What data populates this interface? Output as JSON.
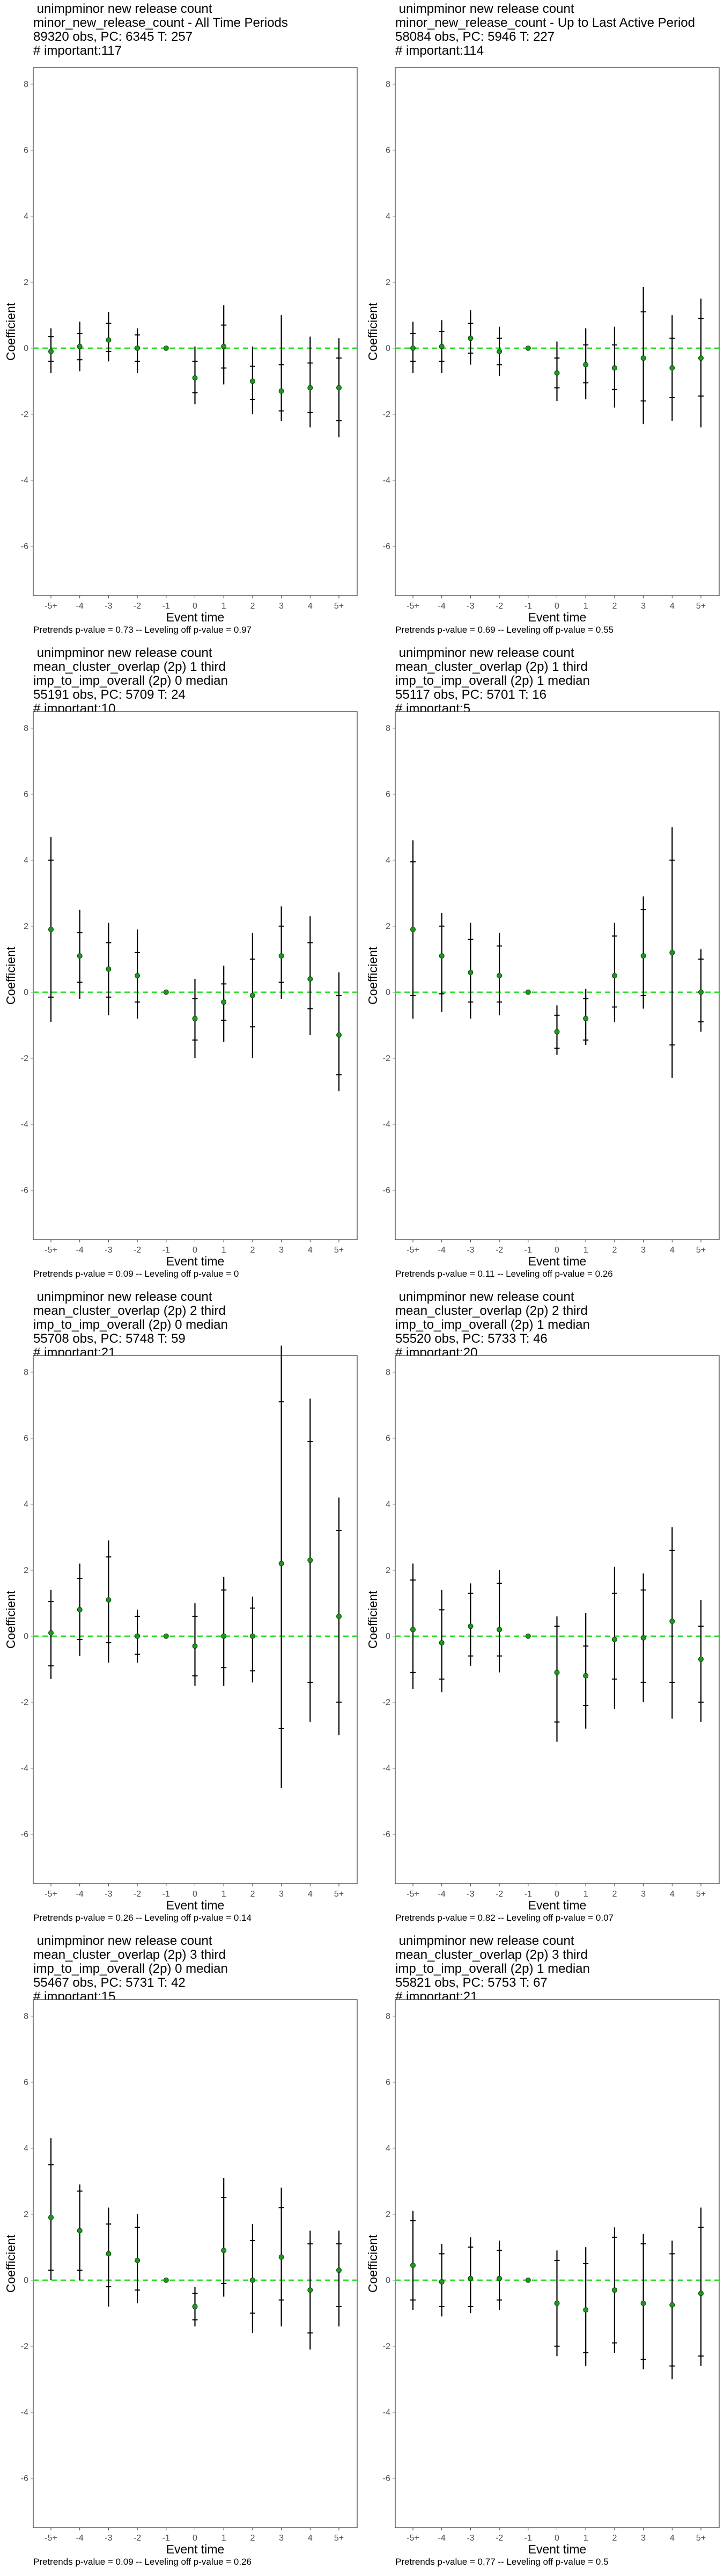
{
  "shared": {
    "x_label": "Event time",
    "y_label": "Coefficient",
    "x_ticks": [
      "-5+",
      "-4",
      "-3",
      "-2",
      "-1",
      "0",
      "1",
      "2",
      "3",
      "4",
      "5+"
    ],
    "y_ticks": [
      8,
      6,
      4,
      2,
      0,
      -2,
      -4,
      -6
    ],
    "point_color": "#1a9a1a",
    "zero_line_color": "#33dd33"
  },
  "chart_data": [
    {
      "type": "scatter",
      "title_lines": [
        " unimpminor new release count",
        "minor_new_release_count - All Time Periods",
        "89320 obs, PC: 6345 T: 257",
        "# important:117"
      ],
      "caption": "Pretrends p-value = 0.73 -- Leveling off p-value = 0.97",
      "xlabel": "Event time",
      "ylabel": "Coefficient",
      "ylim": [
        -7.5,
        8.5
      ],
      "categories": [
        "-5+",
        "-4",
        "-3",
        "-2",
        "-1",
        "0",
        "1",
        "2",
        "3",
        "4",
        "5+"
      ],
      "series": [
        {
          "values": [
            -0.1,
            0.05,
            0.25,
            0.0,
            0.0,
            -0.9,
            0.05,
            -1.0,
            -1.3,
            -1.2,
            -1.2
          ],
          "ci_outer_low": [
            -0.75,
            -0.7,
            -0.4,
            -0.75,
            0.0,
            -1.7,
            -1.1,
            -2.0,
            -2.2,
            -2.4,
            -2.7
          ],
          "ci_outer_high": [
            0.6,
            0.8,
            1.1,
            0.6,
            0.0,
            0.05,
            1.3,
            0.05,
            1.0,
            0.35,
            0.3
          ],
          "ci_inner_low": [
            -0.4,
            -0.35,
            -0.1,
            -0.4,
            0.0,
            -1.35,
            -0.6,
            -1.55,
            -1.9,
            -1.95,
            -2.2
          ],
          "ci_inner_high": [
            0.35,
            0.45,
            0.75,
            0.4,
            0.0,
            -0.4,
            0.7,
            -0.55,
            -0.5,
            -0.45,
            -0.3
          ]
        }
      ]
    },
    {
      "type": "scatter",
      "title_lines": [
        " unimpminor new release count",
        "minor_new_release_count - Up to Last Active Period",
        "58084 obs, PC: 5946 T: 227",
        "# important:114"
      ],
      "caption": "Pretrends p-value = 0.69 -- Leveling off p-value = 0.55",
      "xlabel": "Event time",
      "ylabel": "Coefficient",
      "ylim": [
        -7.5,
        8.5
      ],
      "categories": [
        "-5+",
        "-4",
        "-3",
        "-2",
        "-1",
        "0",
        "1",
        "2",
        "3",
        "4",
        "5+"
      ],
      "series": [
        {
          "values": [
            0.0,
            0.05,
            0.3,
            -0.1,
            0.0,
            -0.75,
            -0.5,
            -0.6,
            -0.3,
            -0.6,
            -0.3
          ],
          "ci_outer_low": [
            -0.75,
            -0.75,
            -0.5,
            -0.85,
            0.0,
            -1.6,
            -1.55,
            -1.8,
            -2.3,
            -2.2,
            -2.4
          ],
          "ci_outer_high": [
            0.8,
            0.85,
            1.15,
            0.65,
            0.0,
            0.2,
            0.6,
            0.65,
            1.85,
            1.0,
            1.5
          ],
          "ci_inner_low": [
            -0.4,
            -0.4,
            -0.15,
            -0.5,
            0.0,
            -1.2,
            -1.05,
            -1.25,
            -1.6,
            -1.5,
            -1.45
          ],
          "ci_inner_high": [
            0.45,
            0.5,
            0.75,
            0.3,
            0.0,
            -0.3,
            0.1,
            0.1,
            1.1,
            0.3,
            0.9
          ]
        }
      ]
    },
    {
      "type": "scatter",
      "title_lines": [
        " unimpminor new release count",
        "mean_cluster_overlap (2p) 1 third",
        "imp_to_imp_overall (2p) 0 median",
        "55191 obs, PC: 5709 T: 24",
        "# important:10"
      ],
      "caption": "Pretrends p-value = 0.09 -- Leveling off p-value = 0",
      "xlabel": "Event time",
      "ylabel": "Coefficient",
      "ylim": [
        -7.5,
        8.5
      ],
      "categories": [
        "-5+",
        "-4",
        "-3",
        "-2",
        "-1",
        "0",
        "1",
        "2",
        "3",
        "4",
        "5+"
      ],
      "series": [
        {
          "values": [
            1.9,
            1.1,
            0.7,
            0.5,
            0.0,
            -0.8,
            -0.3,
            -0.1,
            1.1,
            0.4,
            -1.3
          ],
          "ci_outer_low": [
            -0.9,
            -0.2,
            -0.7,
            -0.8,
            0.0,
            -2.0,
            -1.5,
            -2.0,
            -0.2,
            -1.3,
            -3.0
          ],
          "ci_outer_high": [
            4.7,
            2.5,
            2.1,
            1.9,
            0.0,
            0.4,
            0.8,
            1.8,
            2.6,
            2.3,
            0.6
          ],
          "ci_inner_low": [
            -0.15,
            0.3,
            -0.15,
            -0.3,
            0.0,
            -1.45,
            -0.85,
            -1.05,
            0.3,
            -0.5,
            -2.5
          ],
          "ci_inner_high": [
            4.0,
            1.8,
            1.5,
            1.2,
            0.0,
            -0.2,
            0.25,
            1.0,
            2.0,
            1.5,
            -0.1
          ]
        }
      ]
    },
    {
      "type": "scatter",
      "title_lines": [
        " unimpminor new release count",
        "mean_cluster_overlap (2p) 1 third",
        "imp_to_imp_overall (2p) 1 median",
        "55117 obs, PC: 5701 T: 16",
        "# important:5"
      ],
      "caption": "Pretrends p-value = 0.11 -- Leveling off p-value = 0.26",
      "xlabel": "Event time",
      "ylabel": "Coefficient",
      "ylim": [
        -7.5,
        8.5
      ],
      "categories": [
        "-5+",
        "-4",
        "-3",
        "-2",
        "-1",
        "0",
        "1",
        "2",
        "3",
        "4",
        "5+"
      ],
      "series": [
        {
          "values": [
            1.9,
            1.1,
            0.6,
            0.5,
            0.0,
            -1.2,
            -0.8,
            0.5,
            1.1,
            1.2,
            0.0
          ],
          "ci_outer_low": [
            -0.8,
            -0.6,
            -0.8,
            -0.7,
            0.0,
            -1.9,
            -1.6,
            -0.9,
            -0.5,
            -2.6,
            -1.2
          ],
          "ci_outer_high": [
            4.6,
            2.4,
            2.1,
            1.8,
            0.0,
            -0.4,
            0.1,
            2.1,
            2.9,
            5.0,
            1.3
          ],
          "ci_inner_low": [
            -0.1,
            -0.05,
            -0.3,
            -0.3,
            0.0,
            -1.7,
            -1.45,
            -0.45,
            -0.1,
            -1.6,
            -0.9
          ],
          "ci_inner_high": [
            3.95,
            2.0,
            1.6,
            1.4,
            0.0,
            -0.7,
            -0.2,
            1.7,
            2.5,
            4.0,
            1.0
          ]
        }
      ]
    },
    {
      "type": "scatter",
      "title_lines": [
        " unimpminor new release count",
        "mean_cluster_overlap (2p) 2 third",
        "imp_to_imp_overall (2p) 0 median",
        "55708 obs, PC: 5748 T: 59",
        "# important:21"
      ],
      "caption": "Pretrends p-value = 0.26 -- Leveling off p-value = 0.14",
      "xlabel": "Event time",
      "ylabel": "Coefficient",
      "ylim": [
        -7.5,
        8.5
      ],
      "categories": [
        "-5+",
        "-4",
        "-3",
        "-2",
        "-1",
        "0",
        "1",
        "2",
        "3",
        "4",
        "5+"
      ],
      "series": [
        {
          "values": [
            0.1,
            0.8,
            1.1,
            0.0,
            0.0,
            -0.3,
            0.0,
            0.0,
            2.2,
            2.3,
            0.6
          ],
          "ci_outer_low": [
            -1.3,
            -0.6,
            -0.8,
            -0.8,
            0.0,
            -1.5,
            -1.5,
            -1.4,
            -4.6,
            -2.6,
            -3.0
          ],
          "ci_outer_high": [
            1.4,
            2.2,
            2.9,
            0.8,
            0.0,
            1.0,
            1.8,
            1.2,
            8.8,
            7.2,
            4.2
          ],
          "ci_inner_low": [
            -0.9,
            -0.1,
            -0.2,
            -0.55,
            0.0,
            -1.2,
            -0.95,
            -1.05,
            -2.8,
            -1.4,
            -2.0
          ],
          "ci_inner_high": [
            1.05,
            1.75,
            2.4,
            0.6,
            0.0,
            0.6,
            1.4,
            0.85,
            7.1,
            5.9,
            3.2
          ]
        }
      ]
    },
    {
      "type": "scatter",
      "title_lines": [
        " unimpminor new release count",
        "mean_cluster_overlap (2p) 2 third",
        "imp_to_imp_overall (2p) 1 median",
        "55520 obs, PC: 5733 T: 46",
        "# important:20"
      ],
      "caption": "Pretrends p-value = 0.82 -- Leveling off p-value = 0.07",
      "xlabel": "Event time",
      "ylabel": "Coefficient",
      "ylim": [
        -7.5,
        8.5
      ],
      "categories": [
        "-5+",
        "-4",
        "-3",
        "-2",
        "-1",
        "0",
        "1",
        "2",
        "3",
        "4",
        "5+"
      ],
      "series": [
        {
          "values": [
            0.2,
            -0.2,
            0.3,
            0.2,
            0.0,
            -1.1,
            -1.2,
            -0.1,
            -0.05,
            0.45,
            -0.7
          ],
          "ci_outer_low": [
            -1.6,
            -1.7,
            -0.9,
            -1.1,
            0.0,
            -3.2,
            -2.8,
            -2.2,
            -2.0,
            -2.5,
            -2.6
          ],
          "ci_outer_high": [
            2.2,
            1.4,
            1.6,
            2.0,
            0.0,
            0.6,
            0.7,
            2.1,
            1.9,
            3.3,
            1.1
          ],
          "ci_inner_low": [
            -1.1,
            -1.3,
            -0.6,
            -0.6,
            0.0,
            -2.6,
            -2.1,
            -1.3,
            -1.4,
            -1.4,
            -2.0
          ],
          "ci_inner_high": [
            1.7,
            0.8,
            1.3,
            1.6,
            0.0,
            0.3,
            -0.3,
            1.3,
            1.4,
            2.6,
            0.3
          ]
        }
      ]
    },
    {
      "type": "scatter",
      "title_lines": [
        " unimpminor new release count",
        "mean_cluster_overlap (2p) 3 third",
        "imp_to_imp_overall (2p) 0 median",
        "55467 obs, PC: 5731 T: 42",
        "# important:15"
      ],
      "caption": "Pretrends p-value = 0.09 -- Leveling off p-value = 0.26",
      "xlabel": "Event time",
      "ylabel": "Coefficient",
      "ylim": [
        -7.5,
        8.5
      ],
      "categories": [
        "-5+",
        "-4",
        "-3",
        "-2",
        "-1",
        "0",
        "1",
        "2",
        "3",
        "4",
        "5+"
      ],
      "series": [
        {
          "values": [
            1.9,
            1.5,
            0.8,
            0.6,
            0.0,
            -0.8,
            0.9,
            0.0,
            0.7,
            -0.3,
            0.3
          ],
          "ci_outer_low": [
            0.0,
            0.0,
            -0.8,
            -0.7,
            0.0,
            -1.4,
            -0.5,
            -1.6,
            -1.4,
            -2.1,
            -1.4
          ],
          "ci_outer_high": [
            4.3,
            2.9,
            2.2,
            2.0,
            0.0,
            -0.2,
            3.1,
            1.7,
            2.8,
            1.5,
            1.5
          ],
          "ci_inner_low": [
            0.3,
            0.3,
            -0.2,
            -0.3,
            0.0,
            -1.2,
            -0.1,
            -1.0,
            -0.6,
            -1.6,
            -0.8
          ],
          "ci_inner_high": [
            3.5,
            2.7,
            1.7,
            1.6,
            0.0,
            -0.4,
            2.5,
            1.2,
            2.2,
            1.1,
            1.1
          ]
        }
      ]
    },
    {
      "type": "scatter",
      "title_lines": [
        " unimpminor new release count",
        "mean_cluster_overlap (2p) 3 third",
        "imp_to_imp_overall (2p) 1 median",
        "55821 obs, PC: 5753 T: 67",
        "# important:21"
      ],
      "caption": "Pretrends p-value = 0.77 -- Leveling off p-value = 0.5",
      "xlabel": "Event time",
      "ylabel": "Coefficient",
      "ylim": [
        -7.5,
        8.5
      ],
      "categories": [
        "-5+",
        "-4",
        "-3",
        "-2",
        "-1",
        "0",
        "1",
        "2",
        "3",
        "4",
        "5+"
      ],
      "series": [
        {
          "values": [
            0.45,
            -0.05,
            0.05,
            0.05,
            0.0,
            -0.7,
            -0.9,
            -0.3,
            -0.7,
            -0.75,
            -0.4
          ],
          "ci_outer_low": [
            -0.9,
            -1.1,
            -1.0,
            -0.9,
            0.0,
            -2.3,
            -2.6,
            -2.2,
            -2.7,
            -3.0,
            -2.6
          ],
          "ci_outer_high": [
            2.1,
            1.1,
            1.3,
            1.2,
            0.0,
            0.9,
            1.0,
            1.6,
            1.4,
            1.2,
            2.2
          ],
          "ci_inner_low": [
            -0.6,
            -0.8,
            -0.8,
            -0.6,
            0.0,
            -2.0,
            -2.2,
            -1.9,
            -2.4,
            -2.6,
            -2.3
          ],
          "ci_inner_high": [
            1.8,
            0.8,
            1.0,
            0.9,
            0.0,
            0.6,
            0.5,
            1.3,
            1.1,
            0.8,
            1.6
          ]
        }
      ]
    }
  ]
}
